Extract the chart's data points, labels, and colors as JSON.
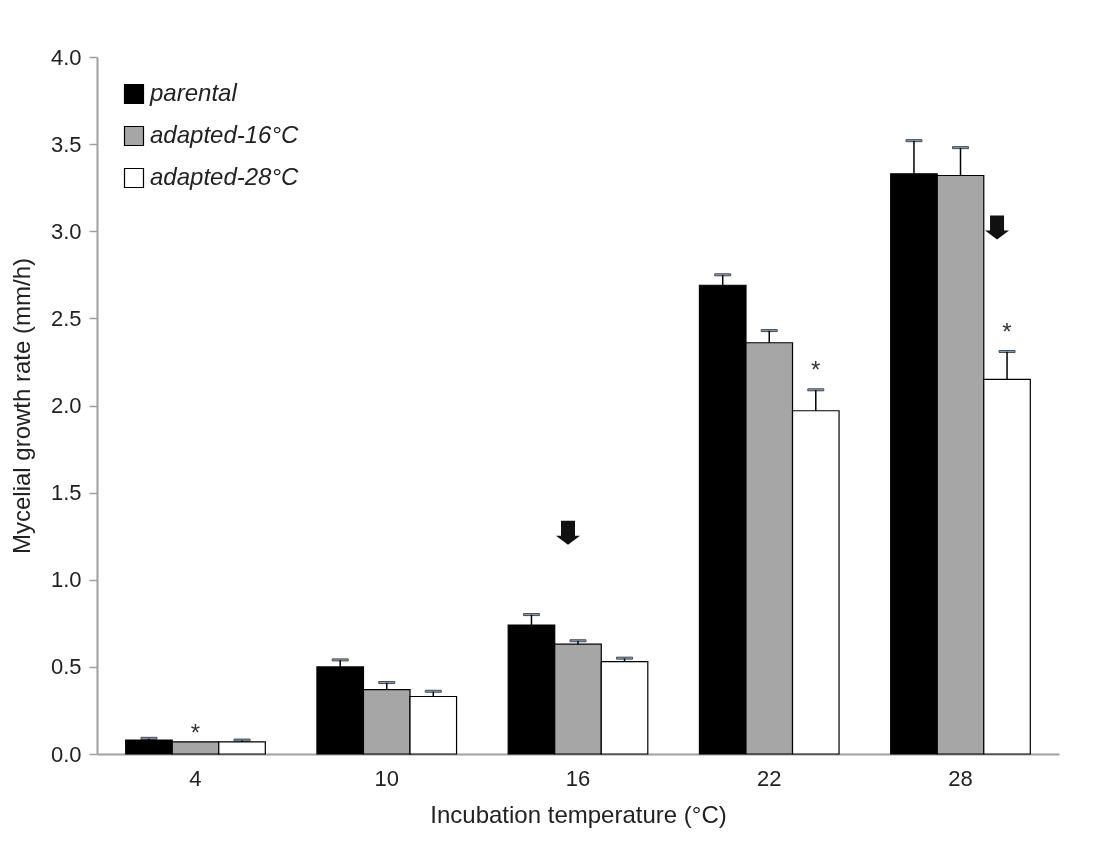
{
  "chart_data": {
    "type": "bar",
    "xlabel": "Incubation temperature (°C)",
    "ylabel": "Mycelial growth rate (mm/h)",
    "categories": [
      "4",
      "10",
      "16",
      "22",
      "28"
    ],
    "series": [
      {
        "name": "parental",
        "color": "#000000",
        "values": [
          0.08,
          0.5,
          0.74,
          2.69,
          3.33
        ],
        "errors": [
          [
            0.08,
            0.09
          ],
          [
            0.5,
            0.54
          ],
          [
            0.74,
            0.8
          ],
          [
            2.69,
            2.75
          ],
          [
            3.33,
            3.52
          ]
        ]
      },
      {
        "name": "adapted-16°C",
        "color": "#a6a6a6",
        "values": [
          0.07,
          0.37,
          0.63,
          2.36,
          3.32
        ],
        "errors": [
          null,
          [
            0.37,
            0.41
          ],
          [
            0.63,
            0.65
          ],
          [
            2.36,
            2.43
          ],
          [
            3.32,
            3.48
          ]
        ]
      },
      {
        "name": "adapted-28°C",
        "color": "#ffffff",
        "values": [
          0.07,
          0.33,
          0.53,
          1.97,
          2.15
        ],
        "errors": [
          [
            0.07,
            0.08
          ],
          [
            0.33,
            0.36
          ],
          [
            0.53,
            0.55
          ],
          [
            1.97,
            2.09
          ],
          [
            2.15,
            2.31
          ]
        ]
      }
    ],
    "ylim": [
      0,
      4
    ],
    "yticks": [
      {
        "value": 0,
        "label": "0.0"
      },
      {
        "value": 0.5,
        "label": "0.5"
      },
      {
        "value": 1,
        "label": "1.0"
      },
      {
        "value": 1.5,
        "label": "1.5"
      },
      {
        "value": 2,
        "label": "2.0"
      },
      {
        "value": 2.5,
        "label": "2.5"
      },
      {
        "value": 3,
        "label": "3.0"
      },
      {
        "value": 3.5,
        "label": "3.5"
      },
      {
        "value": 4,
        "label": "4.0"
      }
    ],
    "annotations": [
      "*",
      "*",
      "*"
    ],
    "grid": false,
    "legend": "top left"
  }
}
